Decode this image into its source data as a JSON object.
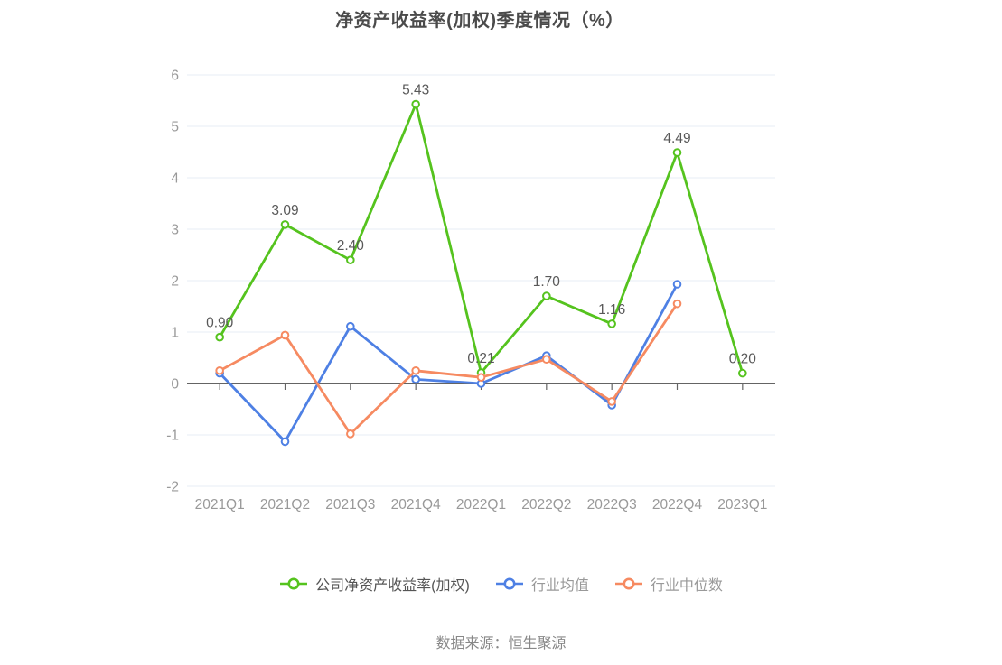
{
  "chart_data": {
    "type": "line",
    "title": "净资产收益率(加权)季度情况（%）",
    "categories": [
      "2021Q1",
      "2021Q2",
      "2021Q3",
      "2021Q4",
      "2022Q1",
      "2022Q2",
      "2022Q3",
      "2022Q4",
      "2023Q1"
    ],
    "series": [
      {
        "name": "公司净资产收益率(加权)",
        "color": "#55c31e",
        "legend_text_color": "#555555",
        "show_point_labels": true,
        "values": [
          0.9,
          3.09,
          2.4,
          5.43,
          0.21,
          1.7,
          1.16,
          4.49,
          0.2
        ],
        "point_labels": [
          "0.90",
          "3.09",
          "2.40",
          "5.43",
          "0.21",
          "1.70",
          "1.16",
          "4.49",
          "0.20"
        ]
      },
      {
        "name": "行业均值",
        "color": "#4e80e4",
        "legend_text_color": "#999999",
        "show_point_labels": false,
        "values": [
          0.2,
          -1.13,
          1.11,
          0.08,
          0.0,
          0.54,
          -0.42,
          1.93,
          null
        ]
      },
      {
        "name": "行业中位数",
        "color": "#f68a61",
        "legend_text_color": "#999999",
        "show_point_labels": false,
        "values": [
          0.25,
          0.94,
          -0.98,
          0.25,
          0.12,
          0.47,
          -0.35,
          1.55,
          null
        ]
      }
    ],
    "ylim": [
      -2,
      6
    ],
    "yticks": [
      -2,
      -1,
      0,
      1,
      2,
      3,
      4,
      5,
      6
    ],
    "grid": true,
    "legend_position": "bottom",
    "colors": {
      "grid_line": "#e7edf5",
      "zero_line": "#646464",
      "tick": "#646464",
      "axis_label": "#999999",
      "point_label": "#595959",
      "title": "#4b4b4b",
      "source": "#888888"
    }
  },
  "source": {
    "text": "数据来源：恒生聚源"
  }
}
